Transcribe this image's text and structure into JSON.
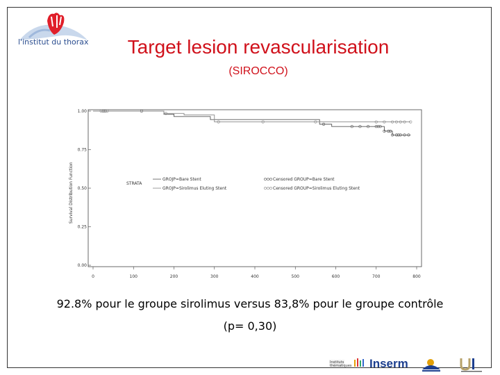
{
  "header": {
    "logo_text": "l'institut du thorax",
    "title": "Target lesion revascularisation",
    "subtitle": "(SIROCCO)"
  },
  "caption": {
    "line1": "92.8% pour le groupe sirolimus versus 83,8% pour le groupe contrôle",
    "line2": "(p=  0,30)"
  },
  "footer": {
    "inserm_label": "Inserm"
  },
  "chart_data": {
    "type": "line",
    "step": true,
    "ylabel": "Survival Distribution Function",
    "xlabel": "",
    "xlim": [
      0,
      800
    ],
    "ylim": [
      0,
      1
    ],
    "x_ticks": [
      0,
      100,
      200,
      300,
      400,
      500,
      600,
      700,
      800
    ],
    "y_ticks": [
      "0.00",
      "0.25",
      "0.50",
      "0.75",
      "1.00"
    ],
    "y_tick_values": [
      0,
      0.25,
      0.5,
      0.75,
      1.0
    ],
    "grid": false,
    "legend": {
      "title": "STRATA",
      "entries": [
        "GROJP=Bare Stent",
        "GROJP=Sirolimus Eluting Stent",
        "Censored GROUP=Bare Stent",
        "Censored GROUP=Sirolimus Eluting Stent"
      ]
    },
    "series": [
      {
        "name": "GROJP=Bare Stent",
        "color": "#555555",
        "x": [
          0,
          175,
          200,
          290,
          560,
          590,
          720,
          740,
          785
        ],
        "y": [
          1.0,
          0.98,
          0.965,
          0.945,
          0.915,
          0.9,
          0.87,
          0.845,
          0.845
        ],
        "censored_x": [
          25,
          30,
          120,
          570,
          640,
          660,
          680,
          700,
          705,
          710,
          720,
          730,
          735,
          740,
          750,
          755,
          760,
          770,
          780
        ]
      },
      {
        "name": "GROJP=Sirolimus Eluting Stent",
        "color": "#888888",
        "x": [
          0,
          175,
          225,
          300,
          785
        ],
        "y": [
          1.0,
          0.985,
          0.975,
          0.93,
          0.93
        ],
        "censored_x": [
          20,
          35,
          180,
          310,
          420,
          550,
          700,
          720,
          740,
          750,
          760,
          770,
          785
        ]
      }
    ]
  }
}
